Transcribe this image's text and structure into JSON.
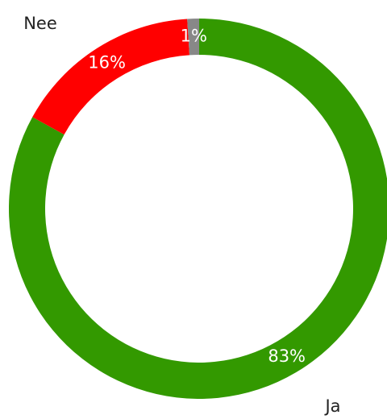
{
  "chart_data": {
    "type": "donut",
    "categories": [
      "Ja",
      "Nee",
      null
    ],
    "values": [
      83,
      16,
      1
    ],
    "value_labels": [
      "83%",
      "16%",
      "1%"
    ],
    "colors": [
      "#339900",
      "#ff0000",
      "#888888"
    ]
  }
}
